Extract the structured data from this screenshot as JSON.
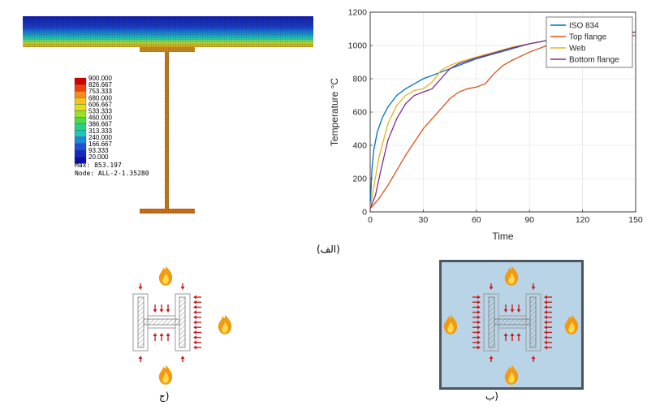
{
  "fe_model": {
    "legend_values": [
      "900.000",
      "826.667",
      "753.333",
      "680.000",
      "606.667",
      "533.333",
      "460.000",
      "386.667",
      "313.333",
      "240.000",
      "166.667",
      "93.333",
      "20.000"
    ],
    "legend_colors": [
      "#d40000",
      "#f04010",
      "#f58a1e",
      "#f4c21c",
      "#d8e020",
      "#9ae024",
      "#4ed84a",
      "#26d08a",
      "#1cc4c4",
      "#2088d8",
      "#1c50d8",
      "#1428c8",
      "#0a10a8"
    ],
    "max_text": "Max: 853.197",
    "node_text": "Node: ALL-2-1.35280"
  },
  "chart_data": {
    "type": "line",
    "xlabel": "Time",
    "ylabel": "Temperature °C",
    "xlim": [
      0,
      150
    ],
    "ylim": [
      0,
      1200
    ],
    "xticks": [
      "0",
      "30",
      "60",
      "90",
      "120",
      "150"
    ],
    "yticks": [
      "0",
      "200",
      "400",
      "600",
      "800",
      "1000",
      "1200"
    ],
    "grid": true,
    "legend_position": "top-right",
    "series": [
      {
        "name": "ISO 834",
        "color": "#0072bd",
        "x": [
          0,
          1,
          2,
          4,
          7,
          10,
          15,
          20,
          30,
          40,
          50,
          60,
          70,
          80,
          90,
          100,
          110,
          120,
          130,
          140,
          150
        ],
        "y": [
          20,
          260,
          370,
          480,
          570,
          630,
          700,
          740,
          800,
          840,
          880,
          920,
          950,
          980,
          1010,
          1030,
          1050,
          1060,
          1070,
          1075,
          1080
        ]
      },
      {
        "name": "Top flange",
        "color": "#d95319",
        "x": [
          0,
          5,
          10,
          15,
          20,
          25,
          30,
          35,
          40,
          45,
          50,
          55,
          60,
          65,
          70,
          75,
          80,
          90,
          100,
          110,
          120,
          130,
          140,
          150
        ],
        "y": [
          20,
          80,
          160,
          250,
          340,
          420,
          500,
          560,
          620,
          680,
          720,
          740,
          750,
          770,
          830,
          880,
          910,
          960,
          1000,
          1030,
          1040,
          1050,
          1055,
          1060
        ]
      },
      {
        "name": "Web",
        "color": "#edb120",
        "x": [
          0,
          2,
          5,
          10,
          15,
          20,
          25,
          30,
          35,
          40,
          45,
          50,
          60,
          70,
          80,
          90,
          100,
          110,
          120,
          130,
          140,
          150
        ],
        "y": [
          20,
          150,
          330,
          530,
          640,
          700,
          730,
          740,
          780,
          850,
          880,
          900,
          930,
          960,
          990,
          1010,
          1030,
          1050,
          1060,
          1070,
          1075,
          1080
        ]
      },
      {
        "name": "Bottom flange",
        "color": "#7e2f8e",
        "x": [
          0,
          3,
          6,
          10,
          15,
          20,
          25,
          30,
          35,
          40,
          45,
          50,
          60,
          70,
          80,
          90,
          100,
          110,
          120,
          130,
          140,
          150
        ],
        "y": [
          20,
          100,
          250,
          430,
          560,
          650,
          700,
          720,
          740,
          800,
          860,
          890,
          925,
          955,
          985,
          1010,
          1030,
          1050,
          1060,
          1070,
          1075,
          1080
        ]
      }
    ]
  },
  "captions": {
    "alef": "(الف)",
    "be": "(ب",
    "jim": "(ج"
  }
}
